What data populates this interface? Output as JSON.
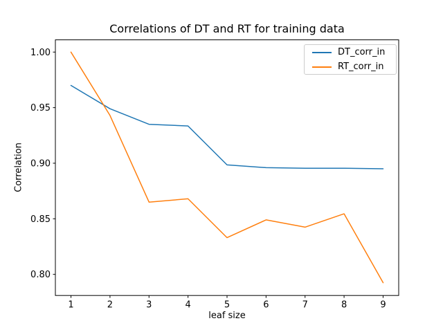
{
  "chart_data": {
    "type": "line",
    "title": "Correlations of DT and RT for training data",
    "xlabel": "leaf size",
    "ylabel": "Correlation",
    "x": [
      1,
      2,
      3,
      4,
      5,
      6,
      7,
      8,
      9
    ],
    "series": [
      {
        "name": "DT_corr_in",
        "color": "#1f77b4",
        "values": [
          0.97,
          0.949,
          0.935,
          0.9335,
          0.8985,
          0.896,
          0.8955,
          0.8955,
          0.895
        ]
      },
      {
        "name": "RT_corr_in",
        "color": "#ff7f0e",
        "values": [
          1.0,
          0.943,
          0.865,
          0.868,
          0.833,
          0.849,
          0.8425,
          0.8545,
          0.7925
        ]
      }
    ],
    "xlim": [
      0.6,
      9.4
    ],
    "ylim": [
      0.781,
      1.011
    ],
    "x_ticks": [
      1,
      2,
      3,
      4,
      5,
      6,
      7,
      8,
      9
    ],
    "y_ticks": [
      0.8,
      0.85,
      0.9,
      0.95,
      1.0
    ],
    "grid": false,
    "legend": {
      "position": "upper right",
      "entries": [
        "DT_corr_in",
        "RT_corr_in"
      ]
    }
  },
  "colors": {
    "background": "#ffffff",
    "spine": "#000000",
    "text": "#000000",
    "legend_border": "#cccccc"
  }
}
